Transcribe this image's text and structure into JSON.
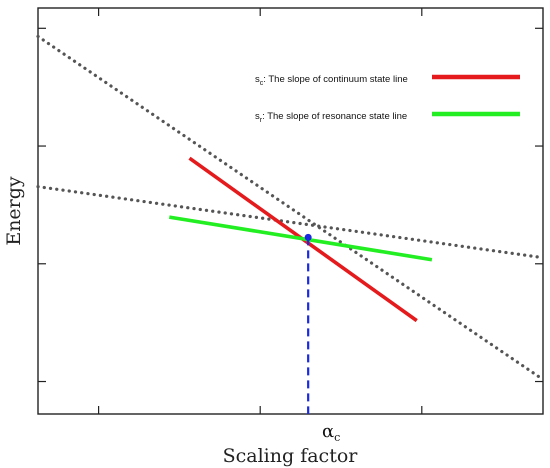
{
  "chart_data": {
    "type": "line",
    "xlabel": "Scaling factor",
    "ylabel": "Energy",
    "xlim": [
      0,
      10
    ],
    "ylim": [
      0,
      10
    ],
    "grid": false,
    "legend_position": "top-right",
    "series": [
      {
        "kind": "dotted",
        "color": "#555555",
        "x": [
          0,
          10
        ],
        "y": [
          9.3,
          0.85
        ]
      },
      {
        "kind": "dotted",
        "color": "#555555",
        "x": [
          0,
          10
        ],
        "y": [
          5.6,
          3.85
        ]
      },
      {
        "kind": "solid",
        "color": "#e41a1c",
        "x": [
          3.0,
          7.5
        ],
        "y": [
          6.3,
          2.3
        ]
      },
      {
        "kind": "solid",
        "color": "#22ee22",
        "x": [
          2.6,
          7.8
        ],
        "y": [
          4.85,
          3.8
        ]
      }
    ],
    "crossing_point": {
      "x": 5.35,
      "y": 4.35,
      "color": "#1a2ae0"
    },
    "critical_line": {
      "x": 5.35,
      "color": "#1a2ae0"
    },
    "legend": [
      {
        "symbol": "s",
        "sub": "c",
        "text": ": The slope of  continuum state line",
        "color": "#e41a1c"
      },
      {
        "symbol": "s",
        "sub": "r",
        "text": ":  The slope of resonance state line",
        "color": "#22ee22"
      }
    ],
    "alpha_label": {
      "symbol": "α",
      "sub": "c"
    }
  }
}
